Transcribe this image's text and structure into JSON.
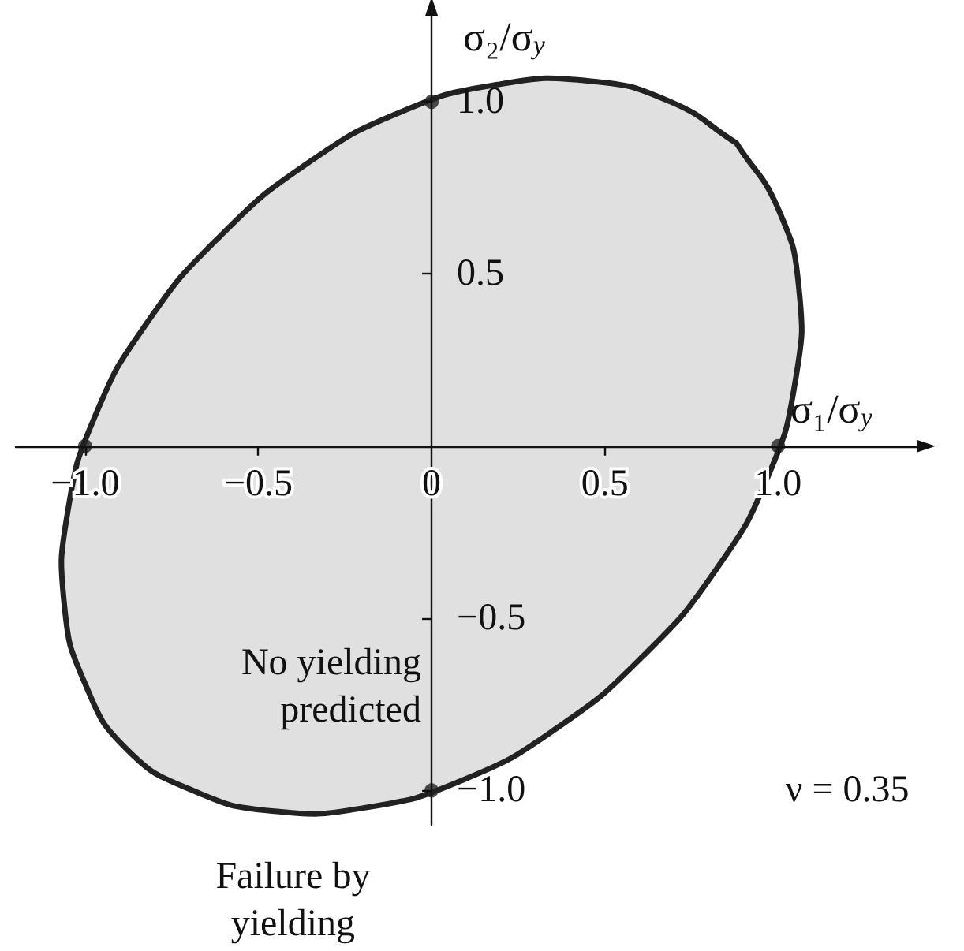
{
  "chart_data": {
    "type": "area",
    "xlabel": "σ₁/σ$_{y}$",
    "ylabel": "σ₂/σ$_{y}$",
    "xlim": [
      -1.2,
      1.4
    ],
    "ylim": [
      -1.1,
      1.25
    ],
    "xticks": [
      {
        "value": -1,
        "label": "−1.0"
      },
      {
        "value": -0.5,
        "label": "−0.5"
      },
      {
        "value": 0,
        "label": "0"
      },
      {
        "value": 0.5,
        "label": "0.5"
      },
      {
        "value": 1,
        "label": "1.0"
      }
    ],
    "yticks": [
      {
        "value": -1,
        "label": "−1.0"
      },
      {
        "value": -0.5,
        "label": "−0.5"
      },
      {
        "value": 0.5,
        "label": "0.5"
      },
      {
        "value": 1,
        "label": "1.0"
      }
    ],
    "grid": false,
    "line_style": "solid",
    "series": [
      {
        "color": "#e0e0e0",
        "x": [
          0.88,
          1.0,
          1.06,
          1.05,
          0.97,
          0.82,
          0.61,
          0.36,
          0.09,
          -0.19,
          -0.46,
          -0.69,
          -0.88,
          -1.0,
          -1.06,
          -1.05,
          -0.97,
          -0.82,
          -0.61,
          -0.36,
          -0.09,
          0.19,
          0.46,
          0.69,
          0.88
        ],
        "values": [
          0.88,
          0.69,
          0.46,
          0.19,
          -0.09,
          -0.36,
          -0.61,
          -0.82,
          -0.97,
          -1.05,
          -1.06,
          -1.0,
          -0.88,
          -0.69,
          -0.46,
          -0.19,
          0.09,
          0.36,
          0.61,
          0.82,
          0.97,
          1.05,
          1.06,
          1.0,
          0.88
        ]
      },
      {
        "type": "scatter",
        "color": "#222222",
        "marker": "circle",
        "x": [
          1,
          0,
          -1,
          0
        ],
        "values": [
          0,
          1,
          0,
          -1
        ]
      }
    ],
    "annotations": [
      "No yielding\npredicted",
      "Failure by\nyielding",
      "ν = 0.35"
    ]
  }
}
